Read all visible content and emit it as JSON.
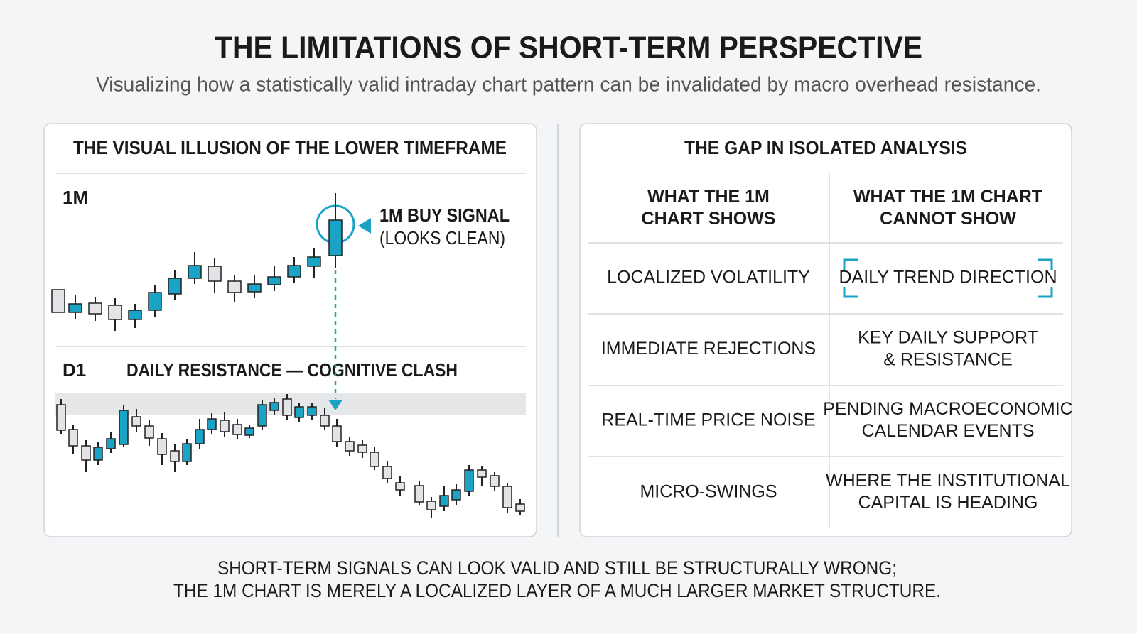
{
  "header": {
    "title": "THE LIMITATIONS OF SHORT-TERM PERSPECTIVE",
    "subtitle": "Visualizing how a statistically valid intraday chart pattern can be invalidated by macro overhead resistance."
  },
  "left_panel": {
    "title": "THE VISUAL ILLUSION OF THE LOWER TIMEFRAME",
    "upper_label": "1M",
    "signal": {
      "title": "1M BUY SIGNAL",
      "note": "(LOOKS CLEAN)"
    },
    "lower_label": "D1",
    "lower_title": "DAILY RESISTANCE — COGNITIVE CLASH"
  },
  "right_panel": {
    "title": "THE GAP IN ISOLATED ANALYSIS",
    "columns": [
      [
        "WHAT THE 1M",
        "CHART SHOWS"
      ],
      [
        "WHAT THE 1M CHART",
        "CANNOT SHOW"
      ]
    ],
    "rows": [
      {
        "shows": [
          "LOCALIZED VOLATILITY"
        ],
        "cannot_show": [
          "DAILY TREND DIRECTION"
        ]
      },
      {
        "shows": [
          "IMMEDIATE REJECTIONS"
        ],
        "cannot_show": [
          "KEY DAILY SUPPORT",
          "& RESISTANCE"
        ]
      },
      {
        "shows": [
          "REAL-TIME PRICE NOISE"
        ],
        "cannot_show": [
          "PENDING MACROECONOMIC",
          "CALENDAR EVENTS"
        ]
      },
      {
        "shows": [
          "MICRO-SWINGS"
        ],
        "cannot_show": [
          "WHERE THE INSTITUTIONAL",
          "CAPITAL IS HEADING"
        ]
      }
    ]
  },
  "footer": {
    "lines": [
      "SHORT-TERM SIGNALS CAN LOOK VALID AND STILL BE STRUCTURALLY WRONG;",
      "THE 1M CHART IS MERELY A LOCALIZED LAYER OF A MUCH LARGER MARKET STRUCTURE."
    ]
  }
}
